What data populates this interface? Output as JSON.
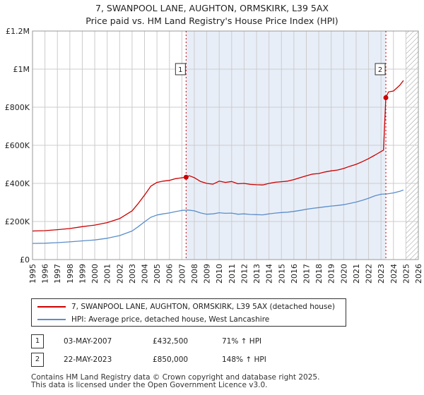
{
  "header": {
    "title_line1": "7, SWANPOOL LANE, AUGHTON, ORMSKIRK, L39 5AX",
    "title_line2": "Price paid vs. HM Land Registry's House Price Index (HPI)"
  },
  "colors": {
    "property": "#cc0000",
    "hpi": "#5b8ec9",
    "shade": "#e8eef8",
    "hatch": "#999999"
  },
  "chart_data": {
    "type": "line",
    "title": "7, SWANPOOL LANE, AUGHTON, ORMSKIRK, L39 5AX",
    "subtitle": "Price paid vs. HM Land Registry's House Price Index (HPI)",
    "xlabel": "",
    "ylabel": "",
    "xlim": [
      1995,
      2026
    ],
    "ylim": [
      0,
      1200000
    ],
    "y_ticks": [
      0,
      200000,
      400000,
      600000,
      800000,
      1000000,
      1200000
    ],
    "y_tick_labels": [
      "£0",
      "£200K",
      "£400K",
      "£600K",
      "£800K",
      "£1M",
      "£1.2M"
    ],
    "x_ticks": [
      1995,
      1996,
      1997,
      1998,
      1999,
      2000,
      2001,
      2002,
      2003,
      2004,
      2005,
      2006,
      2007,
      2008,
      2009,
      2010,
      2011,
      2012,
      2013,
      2014,
      2015,
      2016,
      2017,
      2018,
      2019,
      2020,
      2021,
      2022,
      2023,
      2024,
      2025,
      2026
    ],
    "grid": true,
    "series": [
      {
        "name": "7, SWANPOOL LANE, AUGHTON, ORMSKIRK, L39 5AX (detached house)",
        "color": "#cc0000",
        "x": [
          1995,
          1996,
          1997,
          1998,
          1999,
          2000,
          2001,
          2002,
          2003,
          2003.5,
          2004,
          2004.5,
          2005,
          2005.5,
          2006,
          2006.5,
          2007.34,
          2007.6,
          2008,
          2008.5,
          2009,
          2009.5,
          2010,
          2010.5,
          2011,
          2011.5,
          2012,
          2012.5,
          2013,
          2013.5,
          2014,
          2014.5,
          2015,
          2015.5,
          2016,
          2016.5,
          2017,
          2017.5,
          2018,
          2018.5,
          2019,
          2019.5,
          2020,
          2020.5,
          2021,
          2021.5,
          2022,
          2022.5,
          2023.2,
          2023.39,
          2023.6,
          2024,
          2024.5,
          2024.8
        ],
        "values": [
          150000,
          152000,
          157000,
          163000,
          173000,
          181000,
          194000,
          215000,
          256000,
          295000,
          338000,
          385000,
          405000,
          412000,
          416000,
          425000,
          432500,
          440000,
          430000,
          410000,
          400000,
          396000,
          412000,
          405000,
          410000,
          398000,
          400000,
          395000,
          393000,
          392000,
          400000,
          406000,
          409000,
          412000,
          420000,
          430000,
          440000,
          449000,
          452000,
          460000,
          466000,
          470000,
          478000,
          490000,
          500000,
          514000,
          530000,
          548000,
          575000,
          850000,
          880000,
          885000,
          915000,
          940000
        ]
      },
      {
        "name": "HPI: Average price, detached house, West Lancashire",
        "color": "#5b8ec9",
        "x": [
          1995,
          1996,
          1997,
          1998,
          1999,
          2000,
          2001,
          2002,
          2003,
          2003.5,
          2004,
          2004.5,
          2005,
          2005.5,
          2006,
          2006.5,
          2007,
          2007.5,
          2008,
          2008.5,
          2009,
          2009.5,
          2010,
          2010.5,
          2011,
          2011.5,
          2012,
          2012.5,
          2013,
          2013.5,
          2014,
          2014.5,
          2015,
          2015.5,
          2016,
          2016.5,
          2017,
          2017.5,
          2018,
          2018.5,
          2019,
          2019.5,
          2020,
          2020.5,
          2021,
          2021.5,
          2022,
          2022.5,
          2023,
          2023.5,
          2024,
          2024.5,
          2024.8
        ],
        "values": [
          85000,
          86000,
          89000,
          93000,
          98000,
          103000,
          112000,
          126000,
          150000,
          173000,
          198000,
          222000,
          234000,
          240000,
          245000,
          252000,
          258000,
          260000,
          256000,
          245000,
          238000,
          240000,
          246000,
          243000,
          244000,
          238000,
          240000,
          237000,
          236000,
          235000,
          240000,
          244000,
          247000,
          249000,
          253000,
          258000,
          264000,
          269000,
          273000,
          277000,
          281000,
          284000,
          288000,
          295000,
          302000,
          311000,
          322000,
          335000,
          343000,
          345000,
          350000,
          358000,
          365000
        ]
      }
    ],
    "annotations": [
      {
        "label": "1",
        "x": 2007.34,
        "y": 432500,
        "date": "03-MAY-2007",
        "price": "£432,500",
        "hpi_change": "71% ↑ HPI"
      },
      {
        "label": "2",
        "x": 2023.39,
        "y": 850000,
        "date": "22-MAY-2023",
        "price": "£850,000",
        "hpi_change": "148% ↑ HPI"
      }
    ],
    "shaded_range": [
      2007.34,
      2023.39
    ],
    "hatched_from": 2025
  },
  "legend": {
    "property_label": "7, SWANPOOL LANE, AUGHTON, ORMSKIRK, L39 5AX (detached house)",
    "hpi_label": "HPI: Average price, detached house, West Lancashire"
  },
  "transactions": [
    {
      "num": "1",
      "date": "03-MAY-2007",
      "price": "£432,500",
      "hpi": "71% ↑ HPI"
    },
    {
      "num": "2",
      "date": "22-MAY-2023",
      "price": "£850,000",
      "hpi": "148% ↑ HPI"
    }
  ],
  "footer": {
    "line1": "Contains HM Land Registry data © Crown copyright and database right 2025.",
    "line2": "This data is licensed under the Open Government Licence v3.0."
  }
}
